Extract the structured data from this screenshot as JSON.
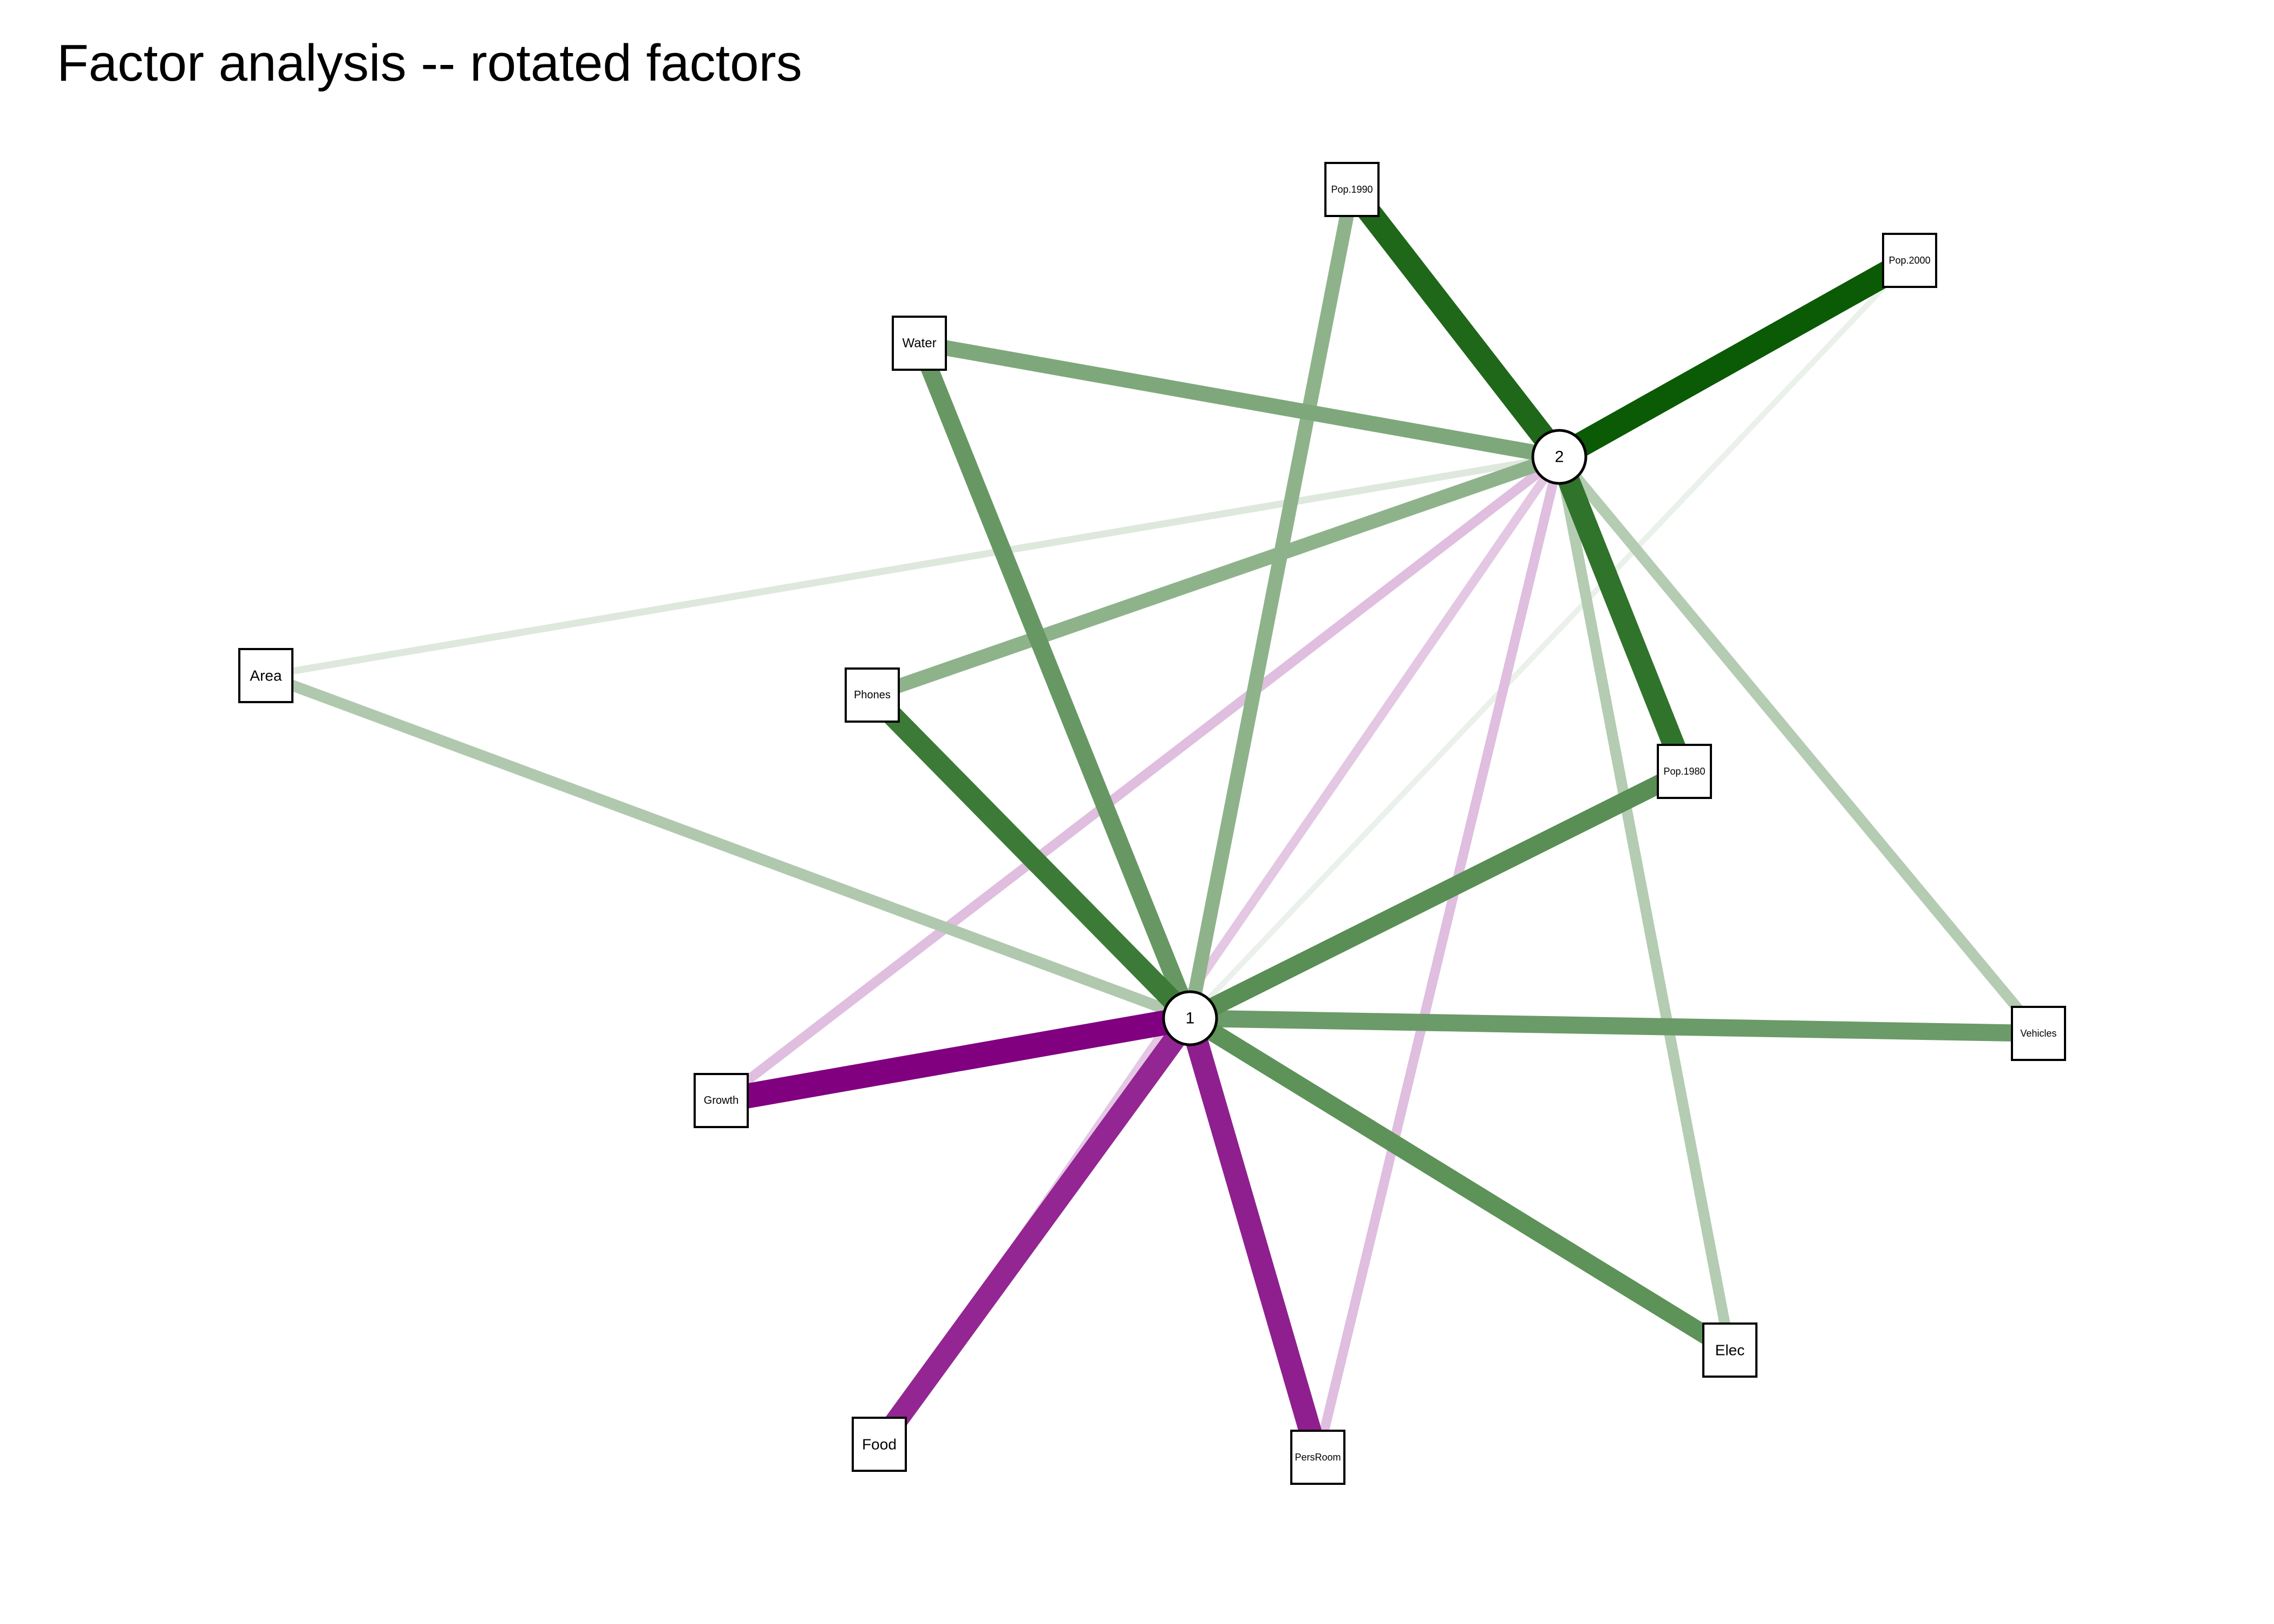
{
  "title": "Factor analysis -- rotated factors",
  "colors": {
    "positive": "#0b5a05",
    "negative": "#800080"
  },
  "factors": [
    {
      "id": "f1",
      "label": "1"
    },
    {
      "id": "f2",
      "label": "2"
    }
  ],
  "variables": [
    {
      "id": "pop1990",
      "label": "Pop.1990"
    },
    {
      "id": "pop2000",
      "label": "Pop.2000"
    },
    {
      "id": "water",
      "label": "Water"
    },
    {
      "id": "area",
      "label": "Area"
    },
    {
      "id": "phones",
      "label": "Phones"
    },
    {
      "id": "pop1980",
      "label": "Pop.1980"
    },
    {
      "id": "vehicles",
      "label": "Vehicles"
    },
    {
      "id": "growth",
      "label": "Growth"
    },
    {
      "id": "elec",
      "label": "Elec"
    },
    {
      "id": "food",
      "label": "Food"
    },
    {
      "id": "persroom",
      "label": "PersRoom"
    }
  ],
  "loadings": [
    {
      "factor": "f1",
      "variable": "pop1990",
      "value": 0.45
    },
    {
      "factor": "f1",
      "variable": "pop2000",
      "value": 0.01
    },
    {
      "factor": "f1",
      "variable": "water",
      "value": 0.62
    },
    {
      "factor": "f1",
      "variable": "area",
      "value": 0.3
    },
    {
      "factor": "f1",
      "variable": "phones",
      "value": 0.8
    },
    {
      "factor": "f1",
      "variable": "pop1980",
      "value": 0.68
    },
    {
      "factor": "f1",
      "variable": "vehicles",
      "value": 0.6
    },
    {
      "factor": "f1",
      "variable": "growth",
      "value": -1.0
    },
    {
      "factor": "f1",
      "variable": "elec",
      "value": 0.66
    },
    {
      "factor": "f1",
      "variable": "food",
      "value": -0.85
    },
    {
      "factor": "f1",
      "variable": "persroom",
      "value": -0.88
    },
    {
      "factor": "f2",
      "variable": "pop1990",
      "value": 0.92
    },
    {
      "factor": "f2",
      "variable": "pop2000",
      "value": 1.0
    },
    {
      "factor": "f2",
      "variable": "water",
      "value": 0.52
    },
    {
      "factor": "f2",
      "variable": "area",
      "value": 0.08
    },
    {
      "factor": "f2",
      "variable": "phones",
      "value": 0.45
    },
    {
      "factor": "f2",
      "variable": "pop1980",
      "value": 0.85
    },
    {
      "factor": "f2",
      "variable": "vehicles",
      "value": 0.28
    },
    {
      "factor": "f2",
      "variable": "growth",
      "value": -0.22
    },
    {
      "factor": "f2",
      "variable": "elec",
      "value": 0.28
    },
    {
      "factor": "f2",
      "variable": "food",
      "value": -0.18
    },
    {
      "factor": "f2",
      "variable": "persroom",
      "value": -0.22
    }
  ]
}
